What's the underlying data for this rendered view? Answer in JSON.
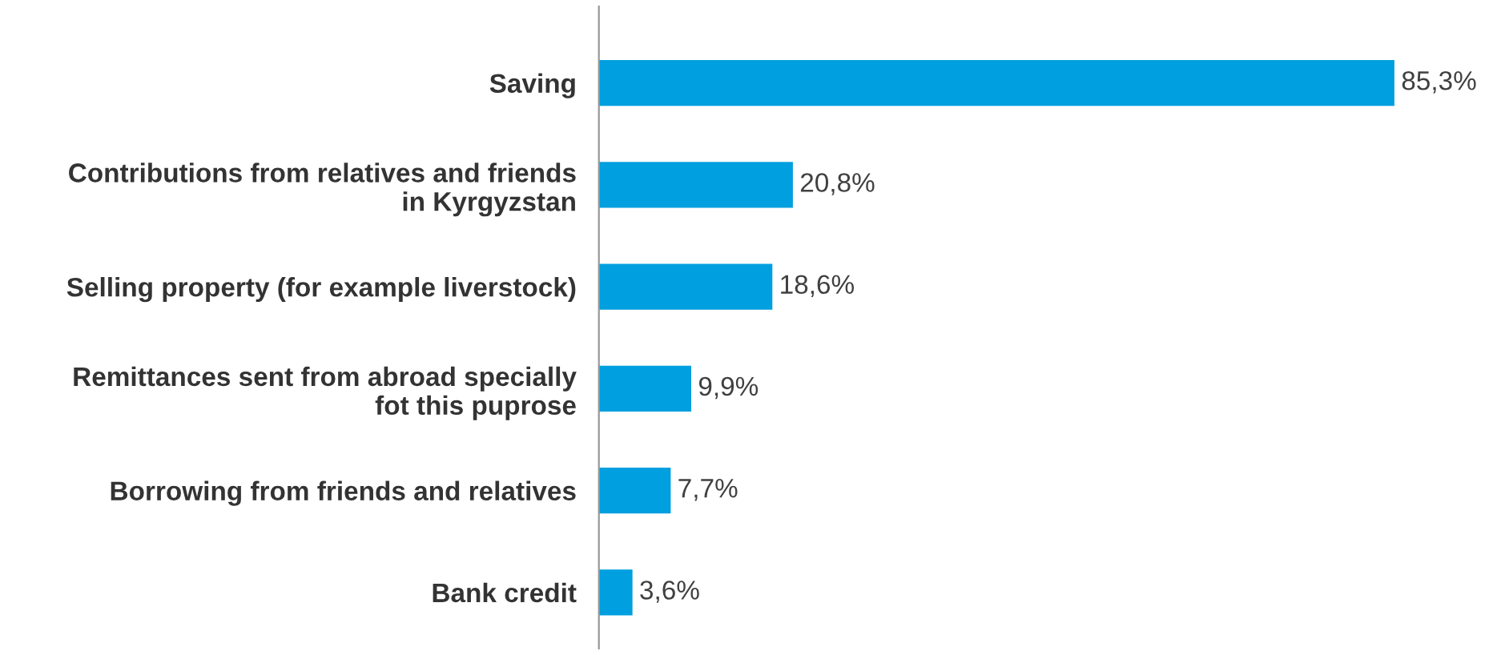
{
  "chart_data": {
    "type": "bar",
    "orientation": "horizontal",
    "categories": [
      "Saving",
      "Contributions from relatives and friends\nin Kyrgyzstan",
      "Selling property (for example liverstock)",
      "Remittances sent from abroad specially\nfot this puprose",
      "Borrowing from friends and relatives",
      "Bank credit"
    ],
    "values": [
      85.3,
      20.8,
      18.6,
      9.9,
      7.7,
      3.6
    ],
    "value_labels": [
      "85,3%",
      "20,8%",
      "18,6%",
      "9,9%",
      "7,7%",
      "3,6%"
    ],
    "color": "#009fdf",
    "grid": false,
    "legend": false,
    "tick_labels": "y"
  }
}
